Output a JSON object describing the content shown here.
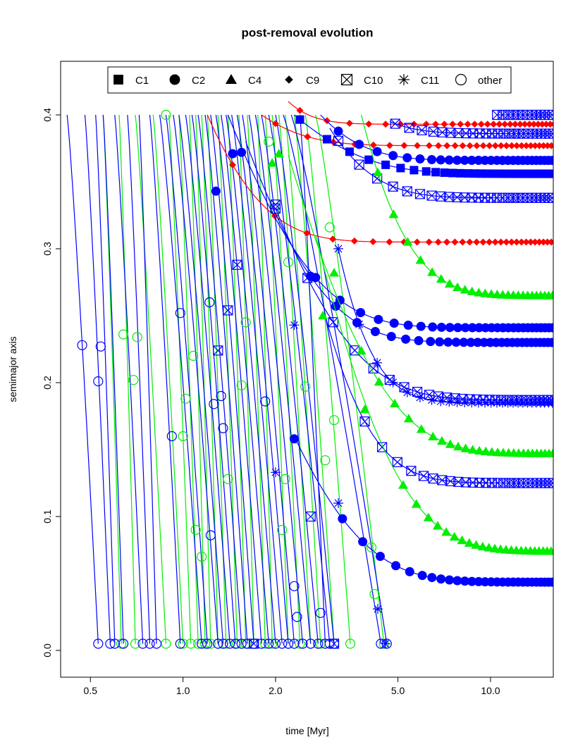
{
  "chart_data": {
    "type": "scatter",
    "title": "post-removal evolution",
    "xlabel": "time [Myr]",
    "ylabel": "semimajor axis",
    "x_scale": "log",
    "xlim": [
      0.4,
      16
    ],
    "ylim": [
      -0.02,
      0.44
    ],
    "x_ticks": [
      0.5,
      1.0,
      2.0,
      5.0,
      10.0
    ],
    "x_tick_labels": [
      "0.5",
      "1.0",
      "2.0",
      "5.0",
      "10.0"
    ],
    "y_ticks": [
      0.0,
      0.1,
      0.2,
      0.3,
      0.4
    ],
    "y_tick_labels": [
      "0.0",
      "0.1",
      "0.2",
      "0.3",
      "0.4"
    ],
    "grid": false,
    "legend_position": "top",
    "legend": [
      {
        "symbol": "C1",
        "label": "C1"
      },
      {
        "symbol": "C2",
        "label": "C2"
      },
      {
        "symbol": "C4",
        "label": "C4"
      },
      {
        "symbol": "C9",
        "label": "C9"
      },
      {
        "symbol": "C10",
        "label": "C10"
      },
      {
        "symbol": "C11",
        "label": "C11"
      },
      {
        "symbol": "other",
        "label": "other"
      }
    ],
    "colors": {
      "blue": "#0000ff",
      "green": "#00ee00",
      "red": "#ff0000"
    },
    "settling_series": [
      {
        "symbol": "C9",
        "color": "red",
        "a0": 0.41,
        "a_inf": 0.393,
        "t0": 2.2,
        "tau": 0.4,
        "marker_from": 2.4
      },
      {
        "symbol": "C9",
        "color": "red",
        "a0": 0.4,
        "a_inf": 0.377,
        "t0": 1.8,
        "tau": 0.6,
        "marker_from": 2.0
      },
      {
        "symbol": "C9",
        "color": "red",
        "a0": 0.4,
        "a_inf": 0.305,
        "t0": 1.2,
        "tau": 0.5,
        "marker_from": 1.45
      },
      {
        "symbol": "C10",
        "color": "blue",
        "a0": 0.4,
        "a_inf": 0.4,
        "t0": 10.5,
        "tau": 1.0,
        "marker_from": 10.5
      },
      {
        "symbol": "C10",
        "color": "blue",
        "a0": 0.395,
        "a_inf": 0.386,
        "t0": 4.7,
        "tau": 1.0,
        "marker_from": 4.9
      },
      {
        "symbol": "C2",
        "color": "blue",
        "a0": 0.4,
        "a_inf": 0.366,
        "t0": 2.8,
        "tau": 0.9,
        "marker_from": 3.2
      },
      {
        "symbol": "C1",
        "color": "blue",
        "a0": 0.4,
        "a_inf": 0.356,
        "t0": 2.3,
        "tau": 1.2,
        "marker_from": 2.4
      },
      {
        "symbol": "C10",
        "color": "blue",
        "a0": 0.39,
        "a_inf": 0.338,
        "t0": 3.0,
        "tau": 1.0,
        "marker_from": 3.2
      },
      {
        "symbol": "C4",
        "color": "green",
        "a0": 0.4,
        "a_inf": 0.265,
        "t0": 3.8,
        "tau": 1.3,
        "marker_from": 4.3
      },
      {
        "symbol": "C2",
        "color": "blue",
        "a0": 0.4,
        "a_inf": 0.241,
        "t0": 1.4,
        "tau": 0.9,
        "marker_from": 2.7
      },
      {
        "symbol": "C2",
        "color": "blue",
        "a0": 0.38,
        "a_inf": 0.23,
        "t0": 1.6,
        "tau": 0.9,
        "marker_from": 2.6
      },
      {
        "symbol": "C11",
        "color": "blue",
        "a0": 0.3,
        "a_inf": 0.185,
        "t0": 3.2,
        "tau": 0.8,
        "marker_from": 3.2
      },
      {
        "symbol": "C10",
        "color": "blue",
        "a0": 0.33,
        "a_inf": 0.187,
        "t0": 2.0,
        "tau": 1.2,
        "marker_from": 2.0
      },
      {
        "symbol": "C4",
        "color": "green",
        "a0": 0.37,
        "a_inf": 0.147,
        "t0": 2.2,
        "tau": 1.5,
        "marker_from": 3.8
      },
      {
        "symbol": "C10",
        "color": "blue",
        "a0": 0.25,
        "a_inf": 0.125,
        "t0": 2.9,
        "tau": 1.0,
        "marker_from": 3.9
      },
      {
        "symbol": "C4",
        "color": "green",
        "a0": 0.31,
        "a_inf": 0.074,
        "t0": 2.7,
        "tau": 1.6,
        "marker_from": 5.2
      },
      {
        "symbol": "C2",
        "color": "blue",
        "a0": 0.16,
        "a_inf": 0.051,
        "t0": 2.3,
        "tau": 1.2,
        "marker_from": 3.3
      }
    ],
    "falling_tracks": {
      "blue_starts": [
        0.42,
        0.48,
        0.52,
        0.55,
        0.6,
        0.66,
        0.72,
        0.78,
        0.84,
        0.88,
        0.93,
        0.97,
        1.02,
        1.07,
        1.12,
        1.18,
        1.23,
        1.28,
        1.33,
        1.38,
        1.44,
        1.5,
        1.56,
        1.64,
        1.72,
        1.8,
        1.9,
        2.0,
        2.12,
        2.25,
        2.4
      ],
      "blue_ends": [
        0.53,
        0.58,
        0.6,
        0.64,
        0.74,
        0.78,
        0.82,
        0.98,
        1.15,
        1.2,
        1.3,
        1.35,
        1.42,
        1.48,
        1.55,
        1.62,
        1.7,
        1.8,
        1.9,
        2.0,
        2.1,
        2.2,
        2.3,
        2.45,
        2.6,
        2.75,
        3.0,
        3.1,
        4.4,
        4.6,
        2.9
      ],
      "green_starts": [
        0.55,
        0.62,
        0.7,
        0.8,
        0.9,
        0.97,
        1.05,
        1.1,
        1.15,
        1.2,
        1.3,
        1.4,
        1.52,
        1.62,
        1.75,
        1.85,
        1.95,
        2.05,
        2.15,
        2.3,
        2.5,
        2.7
      ],
      "green_ends": [
        0.63,
        0.7,
        0.88,
        1.0,
        1.06,
        1.12,
        1.18,
        1.23,
        1.3,
        1.38,
        1.5,
        1.6,
        1.7,
        1.85,
        1.95,
        2.2,
        2.4,
        2.6,
        2.8,
        3.1,
        3.5,
        4.5
      ],
      "end_value": 0.005
    },
    "other_points": [
      {
        "x": 0.47,
        "y": 0.228,
        "color": "blue"
      },
      {
        "x": 0.54,
        "y": 0.227,
        "color": "blue"
      },
      {
        "x": 0.53,
        "y": 0.201,
        "color": "blue"
      },
      {
        "x": 0.64,
        "y": 0.236,
        "color": "green"
      },
      {
        "x": 0.71,
        "y": 0.234,
        "color": "green"
      },
      {
        "x": 0.69,
        "y": 0.202,
        "color": "green"
      },
      {
        "x": 0.88,
        "y": 0.4,
        "color": "green"
      },
      {
        "x": 0.92,
        "y": 0.16,
        "color": "blue"
      },
      {
        "x": 0.98,
        "y": 0.252,
        "color": "blue"
      },
      {
        "x": 1.0,
        "y": 0.16,
        "color": "green"
      },
      {
        "x": 1.02,
        "y": 0.188,
        "color": "green"
      },
      {
        "x": 1.08,
        "y": 0.22,
        "color": "green"
      },
      {
        "x": 1.1,
        "y": 0.09,
        "color": "green"
      },
      {
        "x": 1.15,
        "y": 0.07,
        "color": "green"
      },
      {
        "x": 1.22,
        "y": 0.26,
        "color": "blue"
      },
      {
        "x": 1.23,
        "y": 0.086,
        "color": "blue"
      },
      {
        "x": 1.26,
        "y": 0.184,
        "color": "blue"
      },
      {
        "x": 1.33,
        "y": 0.19,
        "color": "blue"
      },
      {
        "x": 1.35,
        "y": 0.166,
        "color": "blue"
      },
      {
        "x": 1.4,
        "y": 0.128,
        "color": "green"
      },
      {
        "x": 1.55,
        "y": 0.198,
        "color": "green"
      },
      {
        "x": 1.6,
        "y": 0.245,
        "color": "green"
      },
      {
        "x": 1.85,
        "y": 0.186,
        "color": "blue"
      },
      {
        "x": 1.9,
        "y": 0.38,
        "color": "green"
      },
      {
        "x": 2.1,
        "y": 0.09,
        "color": "green"
      },
      {
        "x": 2.15,
        "y": 0.128,
        "color": "green"
      },
      {
        "x": 2.2,
        "y": 0.29,
        "color": "green"
      },
      {
        "x": 2.3,
        "y": 0.048,
        "color": "blue"
      },
      {
        "x": 2.35,
        "y": 0.025,
        "color": "blue"
      },
      {
        "x": 2.5,
        "y": 0.197,
        "color": "green"
      },
      {
        "x": 2.8,
        "y": 0.028,
        "color": "blue"
      },
      {
        "x": 2.9,
        "y": 0.142,
        "color": "green"
      },
      {
        "x": 3.0,
        "y": 0.316,
        "color": "green"
      },
      {
        "x": 3.1,
        "y": 0.172,
        "color": "green"
      },
      {
        "x": 4.1,
        "y": 0.077,
        "color": "green"
      },
      {
        "x": 4.2,
        "y": 0.042,
        "color": "green"
      }
    ],
    "extra_markers": [
      {
        "symbol": "C2",
        "x": 1.28,
        "y": 0.343,
        "color": "blue"
      },
      {
        "symbol": "C2",
        "x": 1.45,
        "y": 0.371,
        "color": "blue"
      },
      {
        "symbol": "C2",
        "x": 1.55,
        "y": 0.372,
        "color": "blue"
      },
      {
        "symbol": "C2",
        "x": 2.3,
        "y": 0.158,
        "color": "blue"
      },
      {
        "symbol": "C10",
        "x": 1.3,
        "y": 0.224,
        "color": "blue"
      },
      {
        "symbol": "C10",
        "x": 1.4,
        "y": 0.254,
        "color": "blue"
      },
      {
        "symbol": "C10",
        "x": 1.5,
        "y": 0.288,
        "color": "blue"
      },
      {
        "symbol": "C10",
        "x": 2.0,
        "y": 0.333,
        "color": "blue"
      },
      {
        "symbol": "C10",
        "x": 2.6,
        "y": 0.1,
        "color": "blue"
      },
      {
        "symbol": "C10",
        "x": 1.7,
        "y": 0.005,
        "color": "blue"
      },
      {
        "symbol": "C10",
        "x": 3.1,
        "y": 0.005,
        "color": "blue"
      },
      {
        "symbol": "C11",
        "x": 2.0,
        "y": 0.133,
        "color": "blue"
      },
      {
        "symbol": "C11",
        "x": 3.2,
        "y": 0.11,
        "color": "blue"
      },
      {
        "symbol": "C11",
        "x": 2.3,
        "y": 0.243,
        "color": "blue"
      },
      {
        "symbol": "C11",
        "x": 4.3,
        "y": 0.031,
        "color": "blue"
      },
      {
        "symbol": "C11",
        "x": 4.55,
        "y": 0.005,
        "color": "blue"
      },
      {
        "symbol": "C4",
        "x": 1.95,
        "y": 0.364,
        "color": "green"
      },
      {
        "symbol": "C4",
        "x": 2.05,
        "y": 0.371,
        "color": "green"
      },
      {
        "symbol": "C4",
        "x": 2.85,
        "y": 0.25,
        "color": "green"
      },
      {
        "symbol": "C4",
        "x": 3.1,
        "y": 0.282,
        "color": "green"
      },
      {
        "symbol": "C4",
        "x": 3.9,
        "y": 0.18,
        "color": "green"
      }
    ]
  }
}
